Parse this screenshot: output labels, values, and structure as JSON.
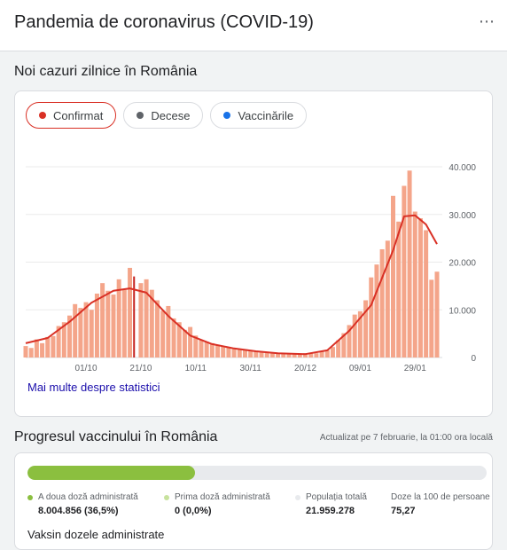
{
  "header": {
    "title": "Pandemia de coronavirus (COVID-19)",
    "more_icon": "more-horiz-icon"
  },
  "cases": {
    "section_title": "Noi cazuri zilnice în România",
    "chips": [
      {
        "label": "Confirmat",
        "color": "#d93025",
        "active": true
      },
      {
        "label": "Decese",
        "color": "#5f6368",
        "active": false
      },
      {
        "label": "Vaccinările",
        "color": "#1a73e8",
        "active": false
      }
    ],
    "more_link": "Mai multe despre statistici"
  },
  "chart_data": {
    "type": "bar",
    "title": "",
    "x_tick_labels": [
      "01/10",
      "21/10",
      "10/11",
      "30/11",
      "20/12",
      "09/01",
      "29/01"
    ],
    "y_tick_labels": [
      "40.000",
      "30.000",
      "20.000",
      "10.000",
      "0"
    ],
    "ylim": [
      0,
      40000
    ],
    "grid": true,
    "bar_color": "#f4a58a",
    "line_color": "#d93025",
    "series": [
      {
        "kind": "daily-bars",
        "x": [
          "09/09",
          "11/09",
          "13/09",
          "15/09",
          "17/09",
          "19/09",
          "21/09",
          "23/09",
          "25/09",
          "27/09",
          "29/09",
          "01/10",
          "03/10",
          "05/10",
          "07/10",
          "09/10",
          "11/10",
          "13/10",
          "15/10",
          "17/10",
          "19/10",
          "21/10",
          "23/10",
          "25/10",
          "27/10",
          "29/10",
          "31/10",
          "02/11",
          "04/11",
          "06/11",
          "08/11",
          "10/11",
          "12/11",
          "14/11",
          "16/11",
          "18/11",
          "20/11",
          "22/11",
          "24/11",
          "26/11",
          "28/11",
          "30/11",
          "02/12",
          "04/12",
          "06/12",
          "08/12",
          "10/12",
          "12/12",
          "14/12",
          "16/12",
          "18/12",
          "20/12",
          "22/12",
          "24/12",
          "26/12",
          "28/12",
          "30/12",
          "01/01",
          "03/01",
          "05/01",
          "07/01",
          "09/01",
          "11/01",
          "13/01",
          "15/01",
          "17/01",
          "19/01",
          "21/01",
          "23/01",
          "25/01",
          "27/01",
          "29/01",
          "31/01",
          "02/02",
          "04/02",
          "06/02"
        ],
        "values": [
          2400,
          2000,
          3800,
          3000,
          4300,
          4500,
          6600,
          7400,
          8800,
          11200,
          10400,
          11600,
          10000,
          13400,
          15600,
          14000,
          13200,
          16400,
          14200,
          18800,
          17000,
          15600,
          16400,
          14200,
          12000,
          9800,
          10800,
          8200,
          7400,
          5800,
          6400,
          4600,
          3700,
          3300,
          3000,
          2700,
          2400,
          2200,
          2000,
          1800,
          1600,
          1500,
          1300,
          1200,
          1100,
          1000,
          900,
          900,
          800,
          700,
          800,
          900,
          1000,
          900,
          1300,
          1500,
          2200,
          3600,
          5100,
          6800,
          9000,
          9700,
          12000,
          16800,
          19500,
          22700,
          24500,
          33900,
          28500,
          36000,
          39200,
          30600,
          29200,
          26700,
          16300,
          18000
        ]
      },
      {
        "kind": "7-day-average",
        "x": [
          "09/09",
          "17/09",
          "25/09",
          "03/10",
          "11/10",
          "17/10",
          "23/10",
          "31/10",
          "08/11",
          "16/11",
          "24/11",
          "02/12",
          "10/12",
          "20/12",
          "28/12",
          "05/01",
          "13/01",
          "21/01",
          "25/01",
          "29/01",
          "02/02",
          "06/02"
        ],
        "values": [
          3000,
          4100,
          7500,
          11500,
          14000,
          14500,
          13600,
          8700,
          4600,
          2800,
          1900,
          1300,
          900,
          700,
          1500,
          5600,
          11000,
          22500,
          29600,
          29800,
          27900,
          23800
        ]
      }
    ],
    "highlight_x": "19/10"
  },
  "vaccination": {
    "section_title": "Progresul vaccinului în România",
    "updated": "Actualizat pe 7 februarie, la 01:00 ora locală",
    "progress": 0.365,
    "stats": [
      {
        "label": "A doua doză administrată",
        "value": "8.004.856 (36,5%)",
        "color": "#8bbf3f"
      },
      {
        "label": "Prima doză administrată",
        "value": "0 (0,0%)",
        "color": "#c7e29d"
      },
      {
        "label": "Populația totală",
        "value": "21.959.278",
        "color": "#e8eaed"
      },
      {
        "label": "Doze la 100 de persoane",
        "value": "75,27",
        "color": ""
      }
    ],
    "cutoff_text": "Vaksin dozele administrate"
  }
}
